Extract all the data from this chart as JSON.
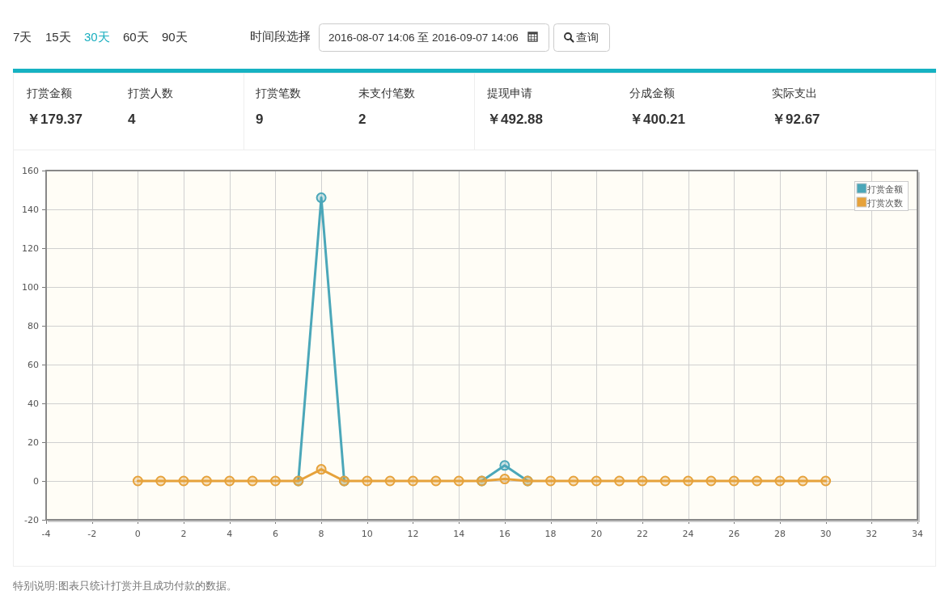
{
  "chart_data": [
    {
      "type": "other",
      "annotations": [
        "7天",
        "15天",
        "30天",
        "60天",
        "90天",
        "时间段选择",
        "2016-08-07 14:06 至 2016-09-07 14:06",
        "查询"
      ]
    },
    {
      "type": "other",
      "annotations": [
        "打赏金额",
        "￥179.37",
        "打赏人数",
        "4",
        "打赏笔数",
        "9",
        "未支付笔数",
        "2",
        "提现申请",
        "￥492.88",
        "分成金额",
        "￥400.21",
        "实际支出",
        "￥92.67"
      ]
    },
    {
      "type": "line",
      "x": [
        0,
        1,
        2,
        3,
        4,
        5,
        6,
        7,
        8,
        9,
        10,
        11,
        12,
        13,
        14,
        15,
        16,
        17,
        18,
        19,
        20,
        21,
        22,
        23,
        24,
        25,
        26,
        27,
        28,
        29,
        30
      ],
      "series": [
        {
          "name": "打赏金额",
          "color": "#4ba7b9",
          "values": [
            null,
            null,
            null,
            null,
            null,
            null,
            null,
            0,
            146,
            0,
            null,
            null,
            null,
            null,
            null,
            0,
            8,
            0,
            null,
            null,
            null,
            null,
            null,
            null,
            null,
            null,
            null,
            null,
            null,
            null,
            null
          ]
        },
        {
          "name": "打赏次数",
          "color": "#e6a23b",
          "values": [
            0,
            0,
            0,
            0,
            0,
            0,
            0,
            0,
            6,
            0,
            0,
            0,
            0,
            0,
            0,
            0,
            1,
            0,
            0,
            0,
            0,
            0,
            0,
            0,
            0,
            0,
            0,
            0,
            0,
            0,
            0
          ]
        }
      ],
      "xlim": [
        -4,
        34
      ],
      "xticks": [
        -4,
        -2,
        0,
        2,
        4,
        6,
        8,
        10,
        12,
        14,
        16,
        18,
        20,
        22,
        24,
        26,
        28,
        30,
        32,
        34
      ],
      "ylim": [
        -20,
        160
      ],
      "yticks": [
        -20,
        0,
        20,
        40,
        60,
        80,
        100,
        120,
        140,
        160
      ],
      "grid": true,
      "legend": "top right",
      "marker": "circle",
      "annotations": [
        "特别说明:图表只统计打赏并且成功付款的数据。"
      ]
    }
  ]
}
